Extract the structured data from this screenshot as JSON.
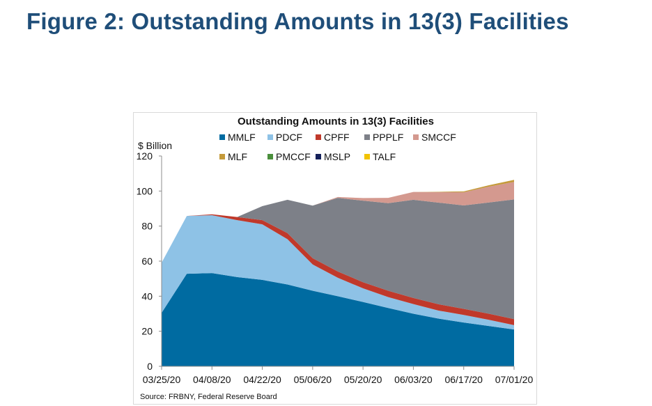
{
  "page": {
    "title": "Figure 2: Outstanding Amounts in 13(3) Facilities"
  },
  "chart_data": {
    "type": "area",
    "stacked": true,
    "title": "Outstanding Amounts in 13(3) Facilities",
    "ylabel": "$ Billion",
    "xlabel": "",
    "source": "Source: FRBNY, Federal Reserve Board",
    "ylim": [
      0,
      120
    ],
    "yticks": [
      0,
      20,
      40,
      60,
      80,
      100,
      120
    ],
    "grid": false,
    "legend_position": "top",
    "x": [
      "03/25/20",
      "04/01/20",
      "04/08/20",
      "04/15/20",
      "04/22/20",
      "04/29/20",
      "05/06/20",
      "05/13/20",
      "05/20/20",
      "05/27/20",
      "06/03/20",
      "06/10/20",
      "06/17/20",
      "06/24/20",
      "07/01/20"
    ],
    "xticks": [
      "03/25/20",
      "04/08/20",
      "04/22/20",
      "05/06/20",
      "05/20/20",
      "06/03/20",
      "06/17/20",
      "07/01/20"
    ],
    "series": [
      {
        "name": "MMLF",
        "color": "#006ba1",
        "values": [
          30.5,
          52.8,
          53.2,
          50.9,
          49.3,
          46.7,
          43.1,
          40.0,
          36.7,
          33.3,
          30.0,
          27.2,
          25.0,
          23.0,
          21.0
        ]
      },
      {
        "name": "PDCF",
        "color": "#8ec2e6",
        "values": [
          28.6,
          33.0,
          33.0,
          32.5,
          31.7,
          25.8,
          15.0,
          10.5,
          7.8,
          6.2,
          5.5,
          4.6,
          4.3,
          3.5,
          2.5
        ]
      },
      {
        "name": "CPFF",
        "color": "#c0392b",
        "values": [
          0.0,
          0.0,
          0.5,
          1.8,
          2.4,
          3.5,
          3.6,
          3.6,
          3.5,
          3.6,
          3.5,
          3.6,
          3.5,
          3.5,
          3.4
        ]
      },
      {
        "name": "PPPLF",
        "color": "#7d8088",
        "values": [
          0.0,
          0.0,
          0.0,
          0.0,
          8.0,
          19.0,
          30.0,
          42.0,
          46.5,
          50.0,
          56.0,
          58.0,
          59.0,
          63.5,
          68.3
        ]
      },
      {
        "name": "SMCCF",
        "color": "#d4998f",
        "values": [
          0.0,
          0.0,
          0.0,
          0.0,
          0.0,
          0.0,
          0.0,
          0.5,
          1.5,
          3.0,
          4.5,
          6.0,
          7.5,
          9.0,
          10.0
        ]
      },
      {
        "name": "MLF",
        "color": "#c49a3a",
        "values": [
          0.0,
          0.0,
          0.0,
          0.0,
          0.0,
          0.0,
          0.0,
          0.0,
          0.0,
          0.0,
          0.0,
          0.2,
          0.5,
          0.8,
          1.2
        ]
      },
      {
        "name": "PMCCF",
        "color": "#4a8f3c",
        "values": [
          0.0,
          0.0,
          0.0,
          0.0,
          0.0,
          0.0,
          0.0,
          0.0,
          0.0,
          0.0,
          0.0,
          0.0,
          0.0,
          0.0,
          0.0
        ]
      },
      {
        "name": "MSLP",
        "color": "#14205a",
        "values": [
          0.0,
          0.0,
          0.0,
          0.0,
          0.0,
          0.0,
          0.0,
          0.0,
          0.0,
          0.0,
          0.0,
          0.0,
          0.0,
          0.0,
          0.0
        ]
      },
      {
        "name": "TALF",
        "color": "#f2c300",
        "values": [
          0.0,
          0.0,
          0.0,
          0.0,
          0.0,
          0.0,
          0.0,
          0.0,
          0.0,
          0.0,
          0.0,
          0.0,
          0.0,
          0.0,
          0.0
        ]
      }
    ]
  }
}
